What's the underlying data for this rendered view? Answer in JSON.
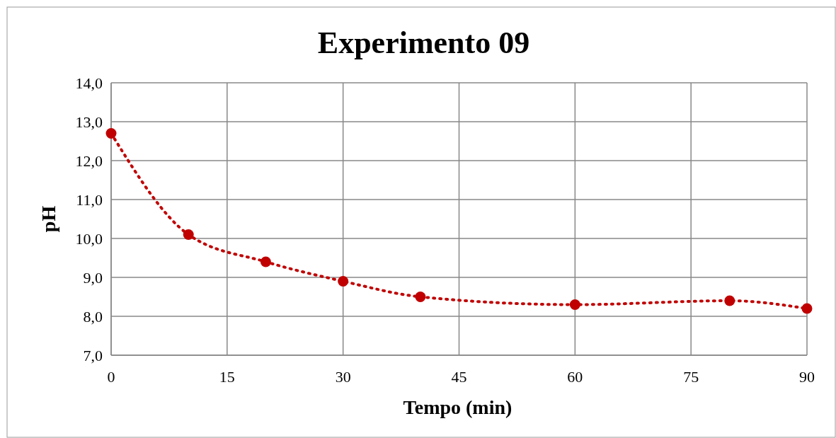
{
  "chart_data": {
    "type": "line",
    "title": "Experimento 09",
    "xlabel": "Tempo (min)",
    "ylabel": "pH",
    "x": [
      0,
      10,
      20,
      30,
      40,
      60,
      80,
      90
    ],
    "series": [
      {
        "color": "#c00000",
        "values": [
          12.7,
          10.1,
          9.4,
          8.9,
          8.5,
          8.3,
          8.4,
          8.2
        ]
      }
    ],
    "xlim": [
      0,
      90
    ],
    "xticks": [
      0,
      15,
      30,
      45,
      60,
      75,
      90
    ],
    "ylim": [
      7,
      14
    ],
    "yticks": [
      {
        "value": 7,
        "label": "7,0"
      },
      {
        "value": 8,
        "label": "8,0"
      },
      {
        "value": 9,
        "label": "9,0"
      },
      {
        "value": 10,
        "label": "10,0"
      },
      {
        "value": 11,
        "label": "11,0"
      },
      {
        "value": 12,
        "label": "12,0"
      },
      {
        "value": 13,
        "label": "13,0"
      },
      {
        "value": 14,
        "label": "14,0"
      }
    ],
    "grid": true,
    "marker": "circle",
    "line_style": "dotted"
  }
}
